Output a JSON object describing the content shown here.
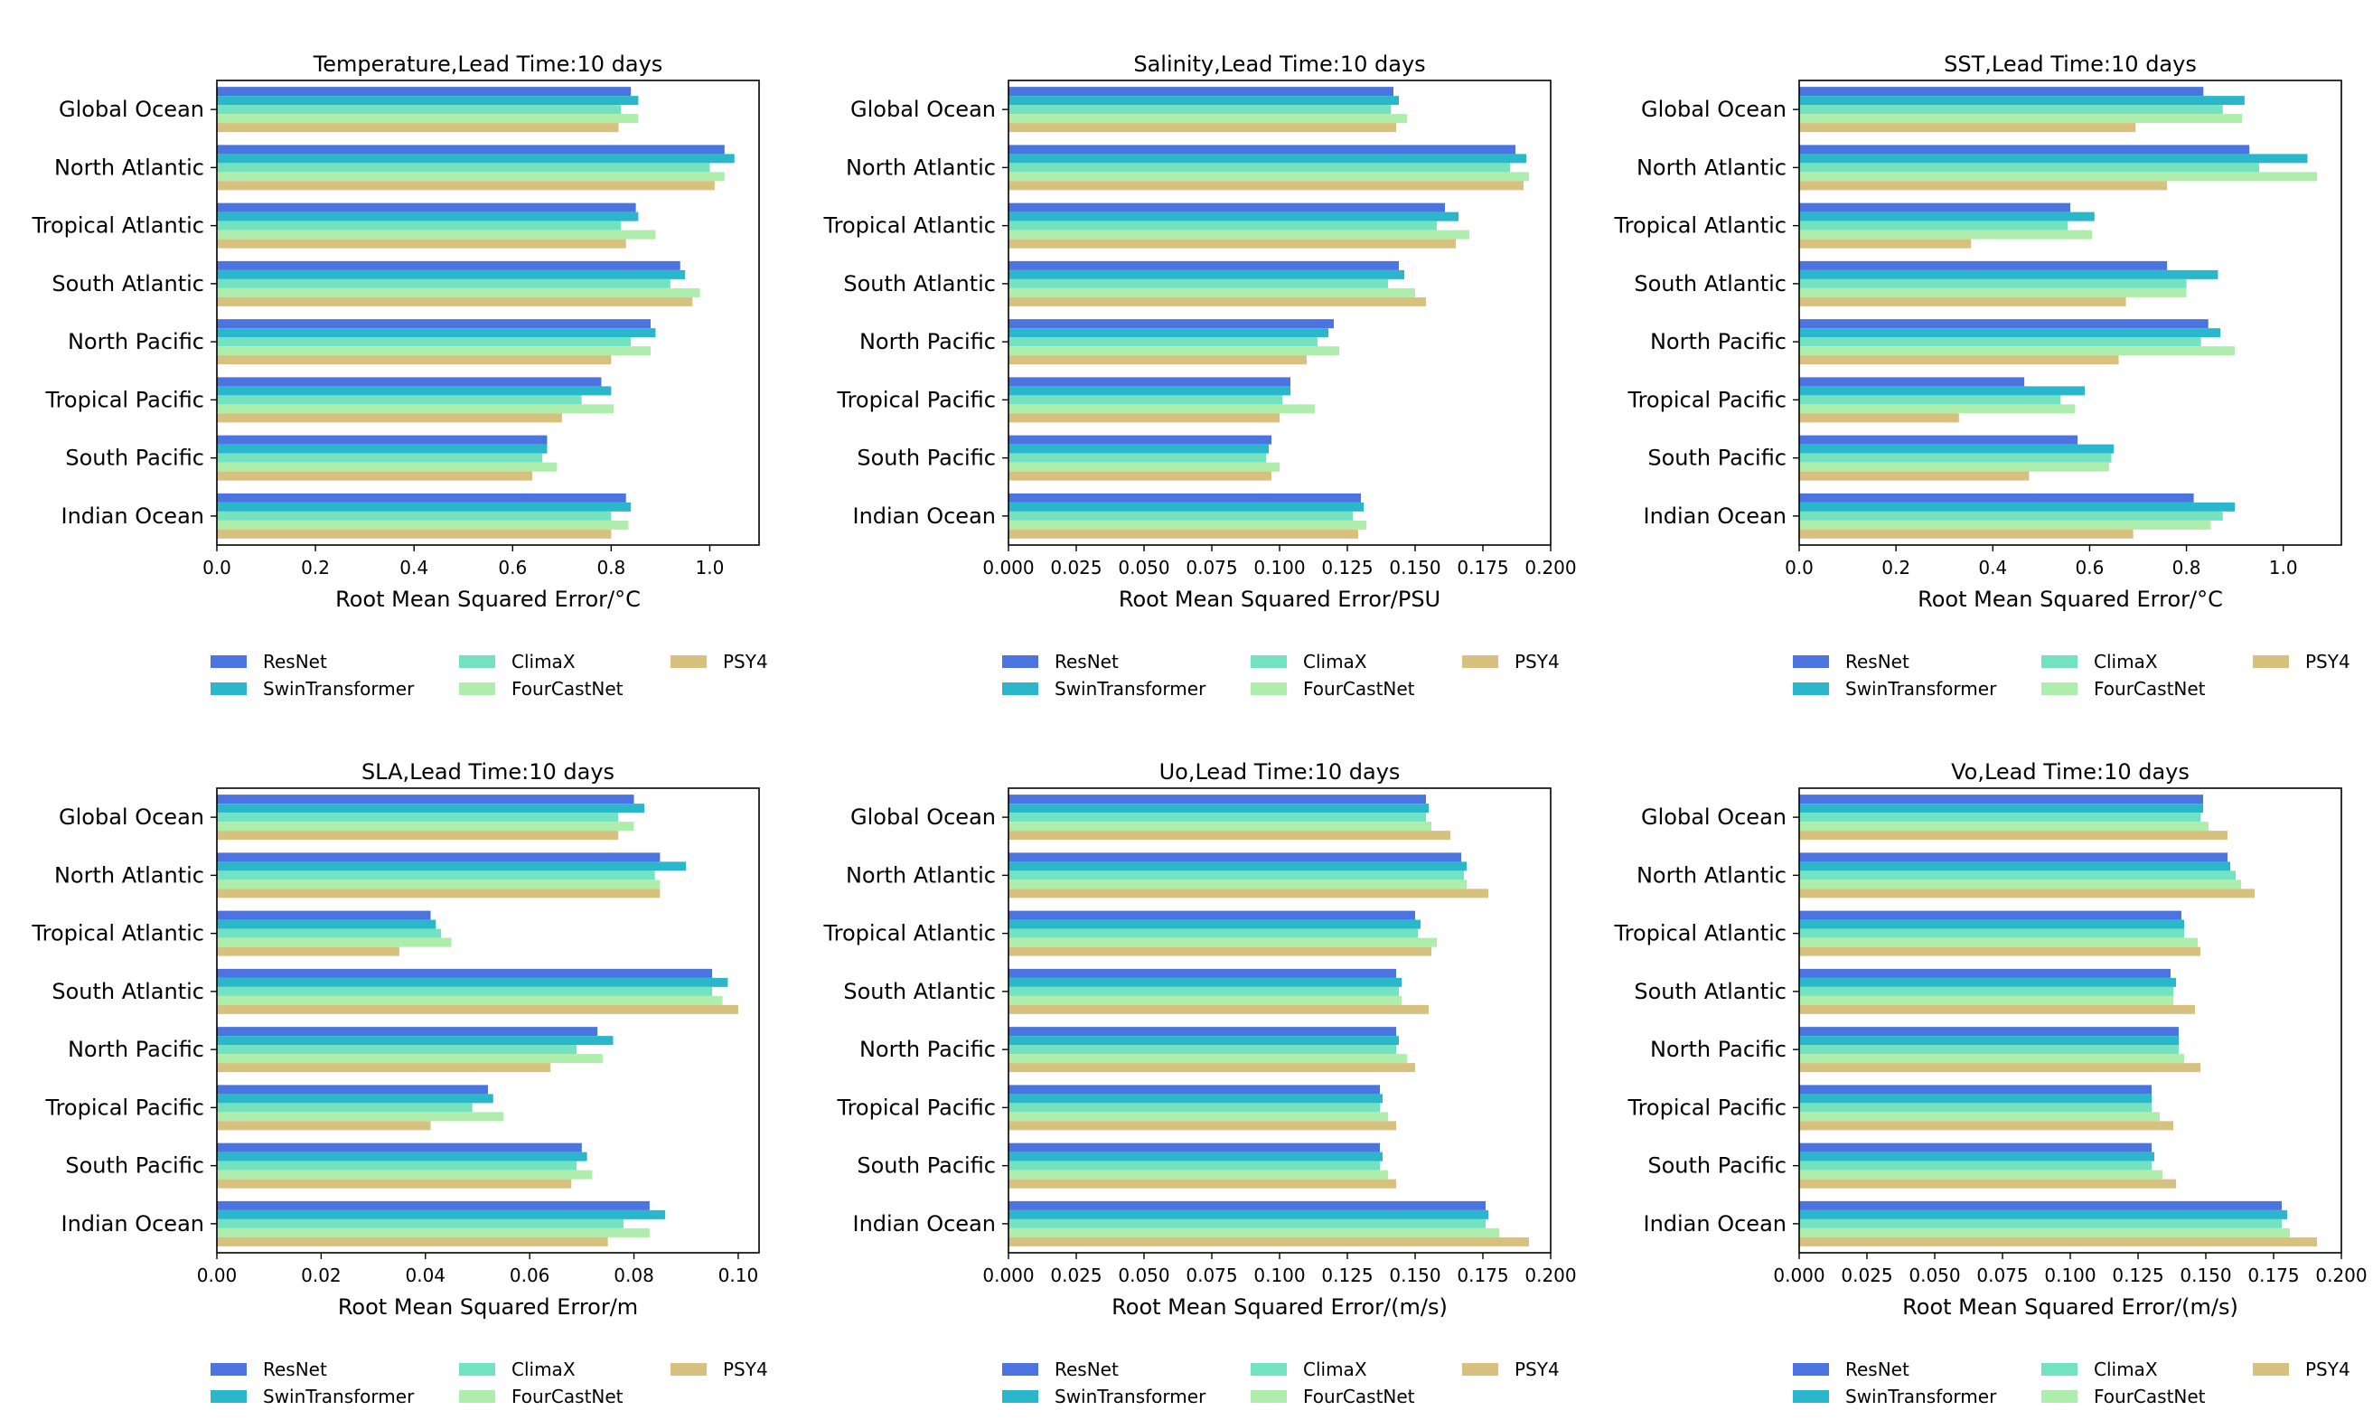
{
  "figure": {
    "series_names": [
      "ResNet",
      "SwinTransformer",
      "ClimaX",
      "FourCastNet",
      "PSY4"
    ],
    "series_colors": [
      "#4b74e0",
      "#2ab7cc",
      "#72e2c0",
      "#aeedab",
      "#d8c17e"
    ]
  },
  "chart_data": [
    {
      "type": "bar",
      "orientation": "horizontal",
      "title": "Temperature,Lead Time:10 days",
      "xlabel": "Root Mean Squared Error/°C",
      "ylabel": "",
      "xlim": [
        0,
        1.1
      ],
      "xticks": [
        0,
        0.2,
        0.4,
        0.6,
        0.8,
        1.0
      ],
      "xtick_labels": [
        "0.0",
        "0.2",
        "0.4",
        "0.6",
        "0.8",
        "1.0"
      ],
      "categories": [
        "Global Ocean",
        "North Atlantic",
        "Tropical Atlantic",
        "South Atlantic",
        "North Pacific",
        "Tropical Pacific",
        "South Pacific",
        "Indian Ocean"
      ],
      "series": [
        {
          "name": "ResNet",
          "values": [
            0.84,
            1.03,
            0.85,
            0.94,
            0.88,
            0.78,
            0.67,
            0.83
          ]
        },
        {
          "name": "SwinTransformer",
          "values": [
            0.855,
            1.05,
            0.855,
            0.95,
            0.89,
            0.8,
            0.67,
            0.84
          ]
        },
        {
          "name": "ClimaX",
          "values": [
            0.82,
            1.0,
            0.82,
            0.92,
            0.84,
            0.74,
            0.66,
            0.8
          ]
        },
        {
          "name": "FourCastNet",
          "values": [
            0.855,
            1.03,
            0.89,
            0.98,
            0.88,
            0.805,
            0.69,
            0.835
          ]
        },
        {
          "name": "PSY4",
          "values": [
            0.815,
            1.01,
            0.83,
            0.965,
            0.8,
            0.7,
            0.64,
            0.8
          ]
        }
      ]
    },
    {
      "type": "bar",
      "orientation": "horizontal",
      "title": "Salinity,Lead Time:10 days",
      "xlabel": "Root Mean Squared Error/PSU",
      "ylabel": "",
      "xlim": [
        0,
        0.2
      ],
      "xticks": [
        0,
        0.025,
        0.05,
        0.075,
        0.1,
        0.125,
        0.15,
        0.175,
        0.2
      ],
      "xtick_labels": [
        "0.000",
        "0.025",
        "0.050",
        "0.075",
        "0.100",
        "0.125",
        "0.150",
        "0.175",
        "0.200"
      ],
      "categories": [
        "Global Ocean",
        "North Atlantic",
        "Tropical Atlantic",
        "South Atlantic",
        "North Pacific",
        "Tropical Pacific",
        "South Pacific",
        "Indian Ocean"
      ],
      "series": [
        {
          "name": "ResNet",
          "values": [
            0.142,
            0.187,
            0.161,
            0.144,
            0.12,
            0.104,
            0.097,
            0.13
          ]
        },
        {
          "name": "SwinTransformer",
          "values": [
            0.144,
            0.191,
            0.166,
            0.146,
            0.118,
            0.104,
            0.096,
            0.131
          ]
        },
        {
          "name": "ClimaX",
          "values": [
            0.141,
            0.185,
            0.158,
            0.14,
            0.114,
            0.101,
            0.095,
            0.127
          ]
        },
        {
          "name": "FourCastNet",
          "values": [
            0.147,
            0.192,
            0.17,
            0.15,
            0.122,
            0.113,
            0.1,
            0.132
          ]
        },
        {
          "name": "PSY4",
          "values": [
            0.143,
            0.19,
            0.165,
            0.154,
            0.11,
            0.1,
            0.097,
            0.129
          ]
        }
      ]
    },
    {
      "type": "bar",
      "orientation": "horizontal",
      "title": "SST,Lead Time:10 days",
      "xlabel": "Root Mean Squared Error/°C",
      "ylabel": "",
      "xlim": [
        0,
        1.12
      ],
      "xticks": [
        0,
        0.2,
        0.4,
        0.6,
        0.8,
        1.0
      ],
      "xtick_labels": [
        "0.0",
        "0.2",
        "0.4",
        "0.6",
        "0.8",
        "1.0"
      ],
      "categories": [
        "Global Ocean",
        "North Atlantic",
        "Tropical Atlantic",
        "South Atlantic",
        "North Pacific",
        "Tropical Pacific",
        "South Pacific",
        "Indian Ocean"
      ],
      "series": [
        {
          "name": "ResNet",
          "values": [
            0.835,
            0.93,
            0.56,
            0.76,
            0.845,
            0.465,
            0.575,
            0.815
          ]
        },
        {
          "name": "SwinTransformer",
          "values": [
            0.92,
            1.05,
            0.61,
            0.865,
            0.87,
            0.59,
            0.65,
            0.9
          ]
        },
        {
          "name": "ClimaX",
          "values": [
            0.875,
            0.95,
            0.555,
            0.8,
            0.83,
            0.54,
            0.645,
            0.875
          ]
        },
        {
          "name": "FourCastNet",
          "values": [
            0.915,
            1.07,
            0.605,
            0.8,
            0.9,
            0.57,
            0.64,
            0.85
          ]
        },
        {
          "name": "PSY4",
          "values": [
            0.695,
            0.76,
            0.355,
            0.675,
            0.66,
            0.33,
            0.475,
            0.69
          ]
        }
      ]
    },
    {
      "type": "bar",
      "orientation": "horizontal",
      "title": "SLA,Lead Time:10 days",
      "xlabel": "Root Mean Squared Error/m",
      "ylabel": "",
      "xlim": [
        0,
        0.104
      ],
      "xticks": [
        0,
        0.02,
        0.04,
        0.06,
        0.08,
        0.1
      ],
      "xtick_labels": [
        "0.00",
        "0.02",
        "0.04",
        "0.06",
        "0.08",
        "0.10"
      ],
      "categories": [
        "Global Ocean",
        "North Atlantic",
        "Tropical Atlantic",
        "South Atlantic",
        "North Pacific",
        "Tropical Pacific",
        "South Pacific",
        "Indian Ocean"
      ],
      "series": [
        {
          "name": "ResNet",
          "values": [
            0.08,
            0.085,
            0.041,
            0.095,
            0.073,
            0.052,
            0.07,
            0.083
          ]
        },
        {
          "name": "SwinTransformer",
          "values": [
            0.082,
            0.09,
            0.042,
            0.098,
            0.076,
            0.053,
            0.071,
            0.086
          ]
        },
        {
          "name": "ClimaX",
          "values": [
            0.077,
            0.084,
            0.043,
            0.095,
            0.069,
            0.049,
            0.069,
            0.078
          ]
        },
        {
          "name": "FourCastNet",
          "values": [
            0.08,
            0.085,
            0.045,
            0.097,
            0.074,
            0.055,
            0.072,
            0.083
          ]
        },
        {
          "name": "PSY4",
          "values": [
            0.077,
            0.085,
            0.035,
            0.1,
            0.064,
            0.041,
            0.068,
            0.075
          ]
        }
      ]
    },
    {
      "type": "bar",
      "orientation": "horizontal",
      "title": "Uo,Lead Time:10 days",
      "xlabel": "Root Mean Squared Error/(m/s)",
      "ylabel": "",
      "xlim": [
        0,
        0.2
      ],
      "xticks": [
        0,
        0.025,
        0.05,
        0.075,
        0.1,
        0.125,
        0.15,
        0.175,
        0.2
      ],
      "xtick_labels": [
        "0.000",
        "0.025",
        "0.050",
        "0.075",
        "0.100",
        "0.125",
        "0.150",
        "0.175",
        "0.200"
      ],
      "categories": [
        "Global Ocean",
        "North Atlantic",
        "Tropical Atlantic",
        "South Atlantic",
        "North Pacific",
        "Tropical Pacific",
        "South Pacific",
        "Indian Ocean"
      ],
      "series": [
        {
          "name": "ResNet",
          "values": [
            0.154,
            0.167,
            0.15,
            0.143,
            0.143,
            0.137,
            0.137,
            0.176
          ]
        },
        {
          "name": "SwinTransformer",
          "values": [
            0.155,
            0.169,
            0.152,
            0.145,
            0.144,
            0.138,
            0.138,
            0.177
          ]
        },
        {
          "name": "ClimaX",
          "values": [
            0.154,
            0.168,
            0.151,
            0.144,
            0.143,
            0.137,
            0.137,
            0.176
          ]
        },
        {
          "name": "FourCastNet",
          "values": [
            0.156,
            0.169,
            0.158,
            0.145,
            0.147,
            0.14,
            0.14,
            0.181
          ]
        },
        {
          "name": "PSY4",
          "values": [
            0.163,
            0.177,
            0.156,
            0.155,
            0.15,
            0.143,
            0.143,
            0.192
          ]
        }
      ]
    },
    {
      "type": "bar",
      "orientation": "horizontal",
      "title": "Vo,Lead Time:10 days",
      "xlabel": "Root Mean Squared Error/(m/s)",
      "ylabel": "",
      "xlim": [
        0,
        0.2
      ],
      "xticks": [
        0,
        0.025,
        0.05,
        0.075,
        0.1,
        0.125,
        0.15,
        0.175,
        0.2
      ],
      "xtick_labels": [
        "0.000",
        "0.025",
        "0.050",
        "0.075",
        "0.100",
        "0.125",
        "0.150",
        "0.175",
        "0.200"
      ],
      "categories": [
        "Global Ocean",
        "North Atlantic",
        "Tropical Atlantic",
        "South Atlantic",
        "North Pacific",
        "Tropical Pacific",
        "South Pacific",
        "Indian Ocean"
      ],
      "series": [
        {
          "name": "ResNet",
          "values": [
            0.149,
            0.158,
            0.141,
            0.137,
            0.14,
            0.13,
            0.13,
            0.178
          ]
        },
        {
          "name": "SwinTransformer",
          "values": [
            0.149,
            0.159,
            0.142,
            0.139,
            0.14,
            0.13,
            0.131,
            0.18
          ]
        },
        {
          "name": "ClimaX",
          "values": [
            0.148,
            0.161,
            0.142,
            0.138,
            0.14,
            0.13,
            0.13,
            0.178
          ]
        },
        {
          "name": "FourCastNet",
          "values": [
            0.151,
            0.163,
            0.147,
            0.138,
            0.142,
            0.133,
            0.134,
            0.181
          ]
        },
        {
          "name": "PSY4",
          "values": [
            0.158,
            0.168,
            0.148,
            0.146,
            0.148,
            0.138,
            0.139,
            0.191
          ]
        }
      ]
    }
  ]
}
